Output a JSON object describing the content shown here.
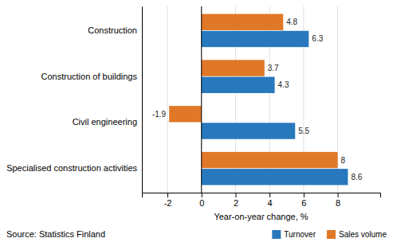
{
  "chart_data": {
    "type": "bar",
    "orientation": "horizontal",
    "categories": [
      "Construction",
      "Construction of buildings",
      "Civil engineering",
      "Specialised construction activities"
    ],
    "series": [
      {
        "name": "Turnover",
        "color": "#2878BE",
        "values": [
          6.3,
          4.3,
          5.5,
          8.6
        ]
      },
      {
        "name": "Sales volume",
        "color": "#E07828",
        "values": [
          4.8,
          3.7,
          -1.9,
          8.0
        ]
      }
    ],
    "xlabel": "Year-on-year change, %",
    "xlim": [
      -3.5,
      10.5
    ],
    "xticks": [
      -2,
      0,
      2,
      4,
      6,
      8
    ],
    "grid": true,
    "legend": "lower right",
    "data_labels": true,
    "annotations": [
      "Source: Statistics Finland"
    ]
  }
}
